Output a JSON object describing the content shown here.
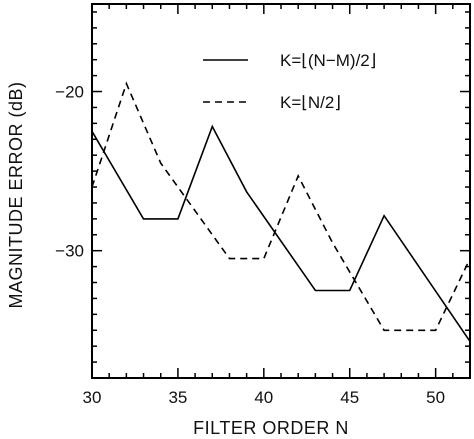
{
  "chart_data": {
    "type": "line",
    "xlabel": "FILTER ORDER  N",
    "ylabel": "MAGNITUDE ERROR (dB)",
    "xlim": [
      30,
      52
    ],
    "ylim": [
      -38,
      -14.5
    ],
    "xticks": [
      30,
      35,
      40,
      45,
      50
    ],
    "yticks": [
      -20,
      -30
    ],
    "x_tick_labels": [
      "30",
      "35",
      "40",
      "45",
      "50"
    ],
    "y_tick_labels": [
      "−20",
      "−30"
    ],
    "grid": false,
    "legend_position": "top-right",
    "series": [
      {
        "name": "K=⌊(N−M)/2⌋",
        "line_style": "solid",
        "color": "#000000",
        "x": [
          30,
          33,
          35,
          37,
          39,
          43,
          45,
          47,
          52
        ],
        "y": [
          -22.5,
          -28,
          -28,
          -22.2,
          -26.3,
          -32.5,
          -32.5,
          -27.8,
          -35.7
        ]
      },
      {
        "name": "K=⌊N/2⌋",
        "line_style": "dashed",
        "color": "#000000",
        "x": [
          30,
          32,
          34,
          38,
          40,
          42,
          44,
          47,
          50,
          52
        ],
        "y": [
          -26,
          -19.5,
          -24.5,
          -30.5,
          -30.5,
          -25.3,
          -29.5,
          -35,
          -35,
          -30.5
        ]
      }
    ]
  }
}
